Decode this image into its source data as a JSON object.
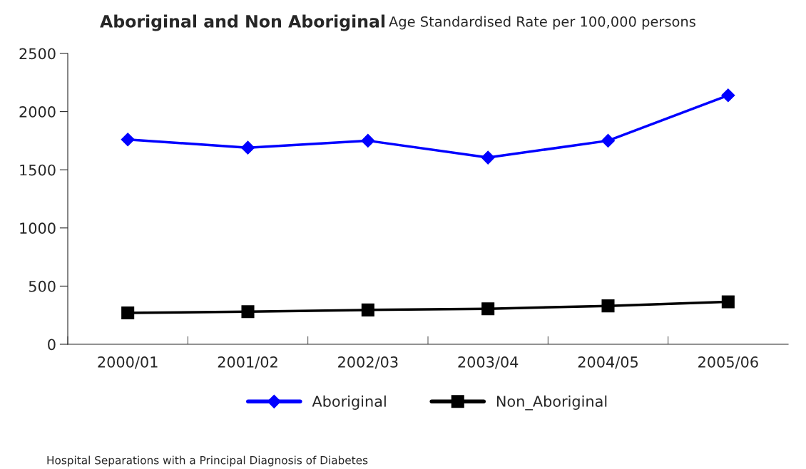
{
  "chart_data": {
    "type": "line",
    "title": "Aboriginal and Non Aboriginal",
    "subtitle": "Age Standardised Rate per 100,000 persons",
    "categories": [
      "2000/01",
      "2001/02",
      "2002/03",
      "2003/04",
      "2004/05",
      "2005/06"
    ],
    "series": [
      {
        "name": "Aboriginal",
        "color": "#0000ff",
        "marker": "diamond",
        "values": [
          1760,
          1690,
          1750,
          1605,
          1750,
          2140
        ]
      },
      {
        "name": "Non_Aboriginal",
        "color": "#000000",
        "marker": "square",
        "values": [
          270,
          280,
          295,
          305,
          330,
          365
        ]
      }
    ],
    "ylim": [
      0,
      2500
    ],
    "yticks": [
      0,
      500,
      1000,
      1500,
      2000,
      2500
    ],
    "grid": false,
    "legend": "bottom",
    "annotations": [
      "Hospital Separations with a Principal Diagnosis of Diabetes"
    ]
  }
}
